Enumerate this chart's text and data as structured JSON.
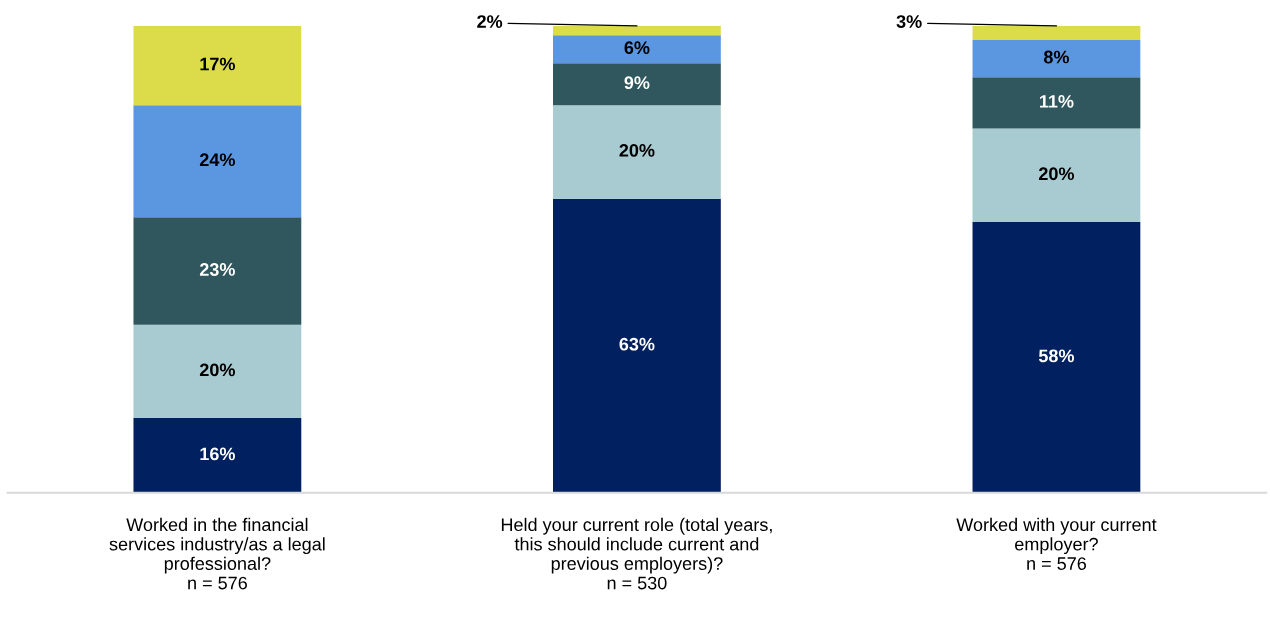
{
  "chart_data": {
    "type": "bar",
    "stacked": true,
    "tick_labels": "x",
    "grid": false,
    "legend": false,
    "categories": [
      "Worked in the financial\nservices industry/as a legal\nprofessional?\nn = 576",
      "Held your current role (total years,\nthis should include current and\nprevious employers)?\nn = 530",
      "Worked with your current\nemployer?\nn = 576"
    ],
    "series": [
      {
        "color": "#002060",
        "values": [
          16,
          63,
          58
        ],
        "value_labels": [
          "16%",
          "63%",
          "58%"
        ]
      },
      {
        "color": "#a8cbd1",
        "values": [
          20,
          20,
          20
        ],
        "value_labels": [
          "20%",
          "20%",
          "20%"
        ]
      },
      {
        "color": "#2f575d",
        "values": [
          23,
          9,
          11
        ],
        "value_labels": [
          "23%",
          "9%",
          "11%"
        ]
      },
      {
        "color": "#5b96e0",
        "values": [
          24,
          6,
          8
        ],
        "value_labels": [
          "24%",
          "6%",
          "8%"
        ]
      },
      {
        "color": "#dcdc4a",
        "values": [
          17,
          2,
          3
        ],
        "value_labels": [
          "17%",
          "2%",
          "3%"
        ]
      }
    ]
  }
}
